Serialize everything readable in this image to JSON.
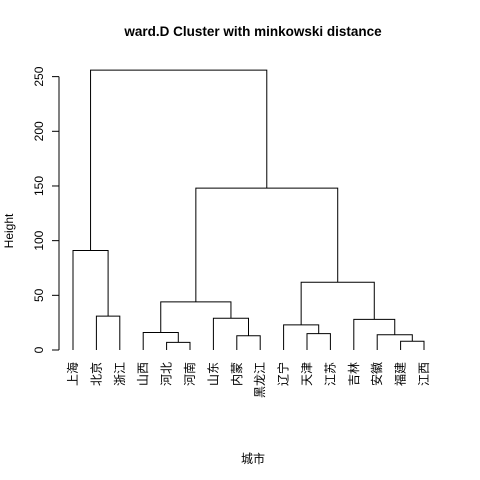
{
  "chart_data": {
    "type": "dendrogram",
    "title": "ward.D Cluster with minkowski distance",
    "xlabel": "城市",
    "ylabel": "Height",
    "ylim": [
      0,
      262
    ],
    "y_ticks": [
      0,
      50,
      100,
      150,
      200,
      250
    ],
    "leaves": [
      "上海",
      "北京",
      "浙江",
      "山西",
      "河北",
      "河南",
      "山东",
      "内蒙",
      "黑龙江",
      "辽宁",
      "天津",
      "江苏",
      "吉林",
      "安徽",
      "福建",
      "江西"
    ],
    "merges": [
      {
        "left": [
          "北京"
        ],
        "right": [
          "浙江"
        ],
        "height": 31
      },
      {
        "left": [
          "上海"
        ],
        "right": [
          "北京",
          "浙江"
        ],
        "height": 91
      },
      {
        "left": [
          "河北"
        ],
        "right": [
          "河南"
        ],
        "height": 7
      },
      {
        "left": [
          "山西"
        ],
        "right": [
          "河北",
          "河南"
        ],
        "height": 16
      },
      {
        "left": [
          "内蒙"
        ],
        "right": [
          "黑龙江"
        ],
        "height": 13
      },
      {
        "left": [
          "山东"
        ],
        "right": [
          "内蒙",
          "黑龙江"
        ],
        "height": 29
      },
      {
        "left": [
          "山西",
          "河北",
          "河南"
        ],
        "right": [
          "山东",
          "内蒙",
          "黑龙江"
        ],
        "height": 44
      },
      {
        "left": [
          "天津"
        ],
        "right": [
          "江苏"
        ],
        "height": 15
      },
      {
        "left": [
          "辽宁"
        ],
        "right": [
          "天津",
          "江苏"
        ],
        "height": 23
      },
      {
        "left": [
          "福建"
        ],
        "right": [
          "江西"
        ],
        "height": 8
      },
      {
        "left": [
          "安徽"
        ],
        "right": [
          "福建",
          "江西"
        ],
        "height": 14
      },
      {
        "left": [
          "吉林"
        ],
        "right": [
          "安徽",
          "福建",
          "江西"
        ],
        "height": 28
      },
      {
        "left": [
          "辽宁",
          "天津",
          "江苏"
        ],
        "right": [
          "吉林",
          "安徽",
          "福建",
          "江西"
        ],
        "height": 62
      },
      {
        "left": [
          "山西",
          "河北",
          "河南",
          "山东",
          "内蒙",
          "黑龙江"
        ],
        "right": [
          "辽宁",
          "天津",
          "江苏",
          "吉林",
          "安徽",
          "福建",
          "江西"
        ],
        "height": 148
      },
      {
        "left": [
          "上海",
          "北京",
          "浙江"
        ],
        "right": [
          "山西",
          "河北",
          "河南",
          "山东",
          "内蒙",
          "黑龙江",
          "辽宁",
          "天津",
          "江苏",
          "吉林",
          "安徽",
          "福建",
          "江西"
        ],
        "height": 256
      }
    ]
  }
}
